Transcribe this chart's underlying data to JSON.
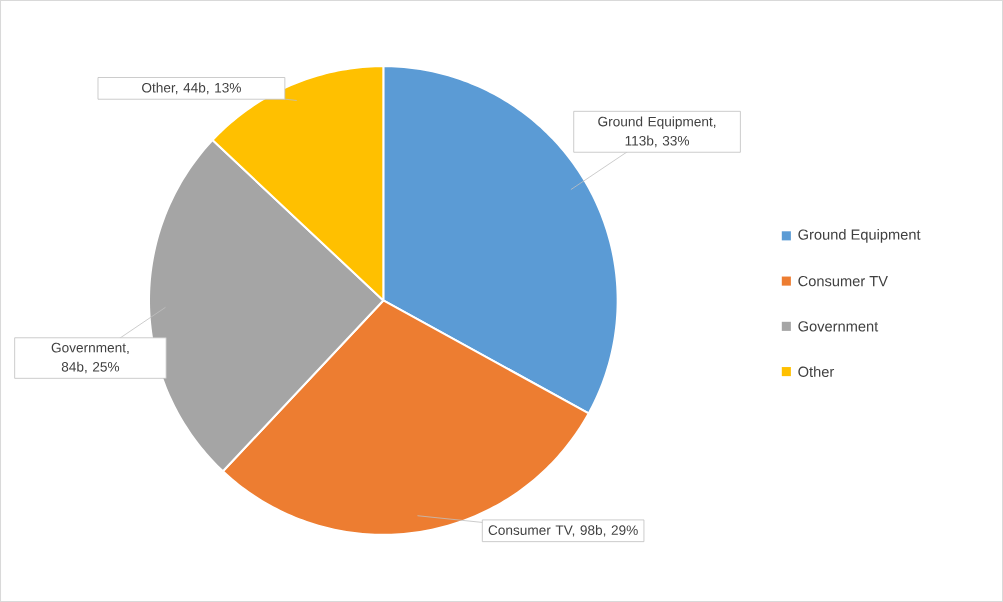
{
  "chart_data": {
    "type": "pie",
    "categories": [
      "Ground Equipment",
      "Consumer TV",
      "Government",
      "Other"
    ],
    "values": [
      33,
      29,
      25,
      13
    ],
    "colors": [
      "#5b9bd5",
      "#ed7d31",
      "#a5a5a5",
      "#ffc000"
    ],
    "value_labels": [
      "Ground Equipment, 113b, 33%",
      "Consumer TV, 98b, 29%",
      "Government, 84b, 25%",
      "Other, 44b, 13%"
    ],
    "legend": "right"
  }
}
